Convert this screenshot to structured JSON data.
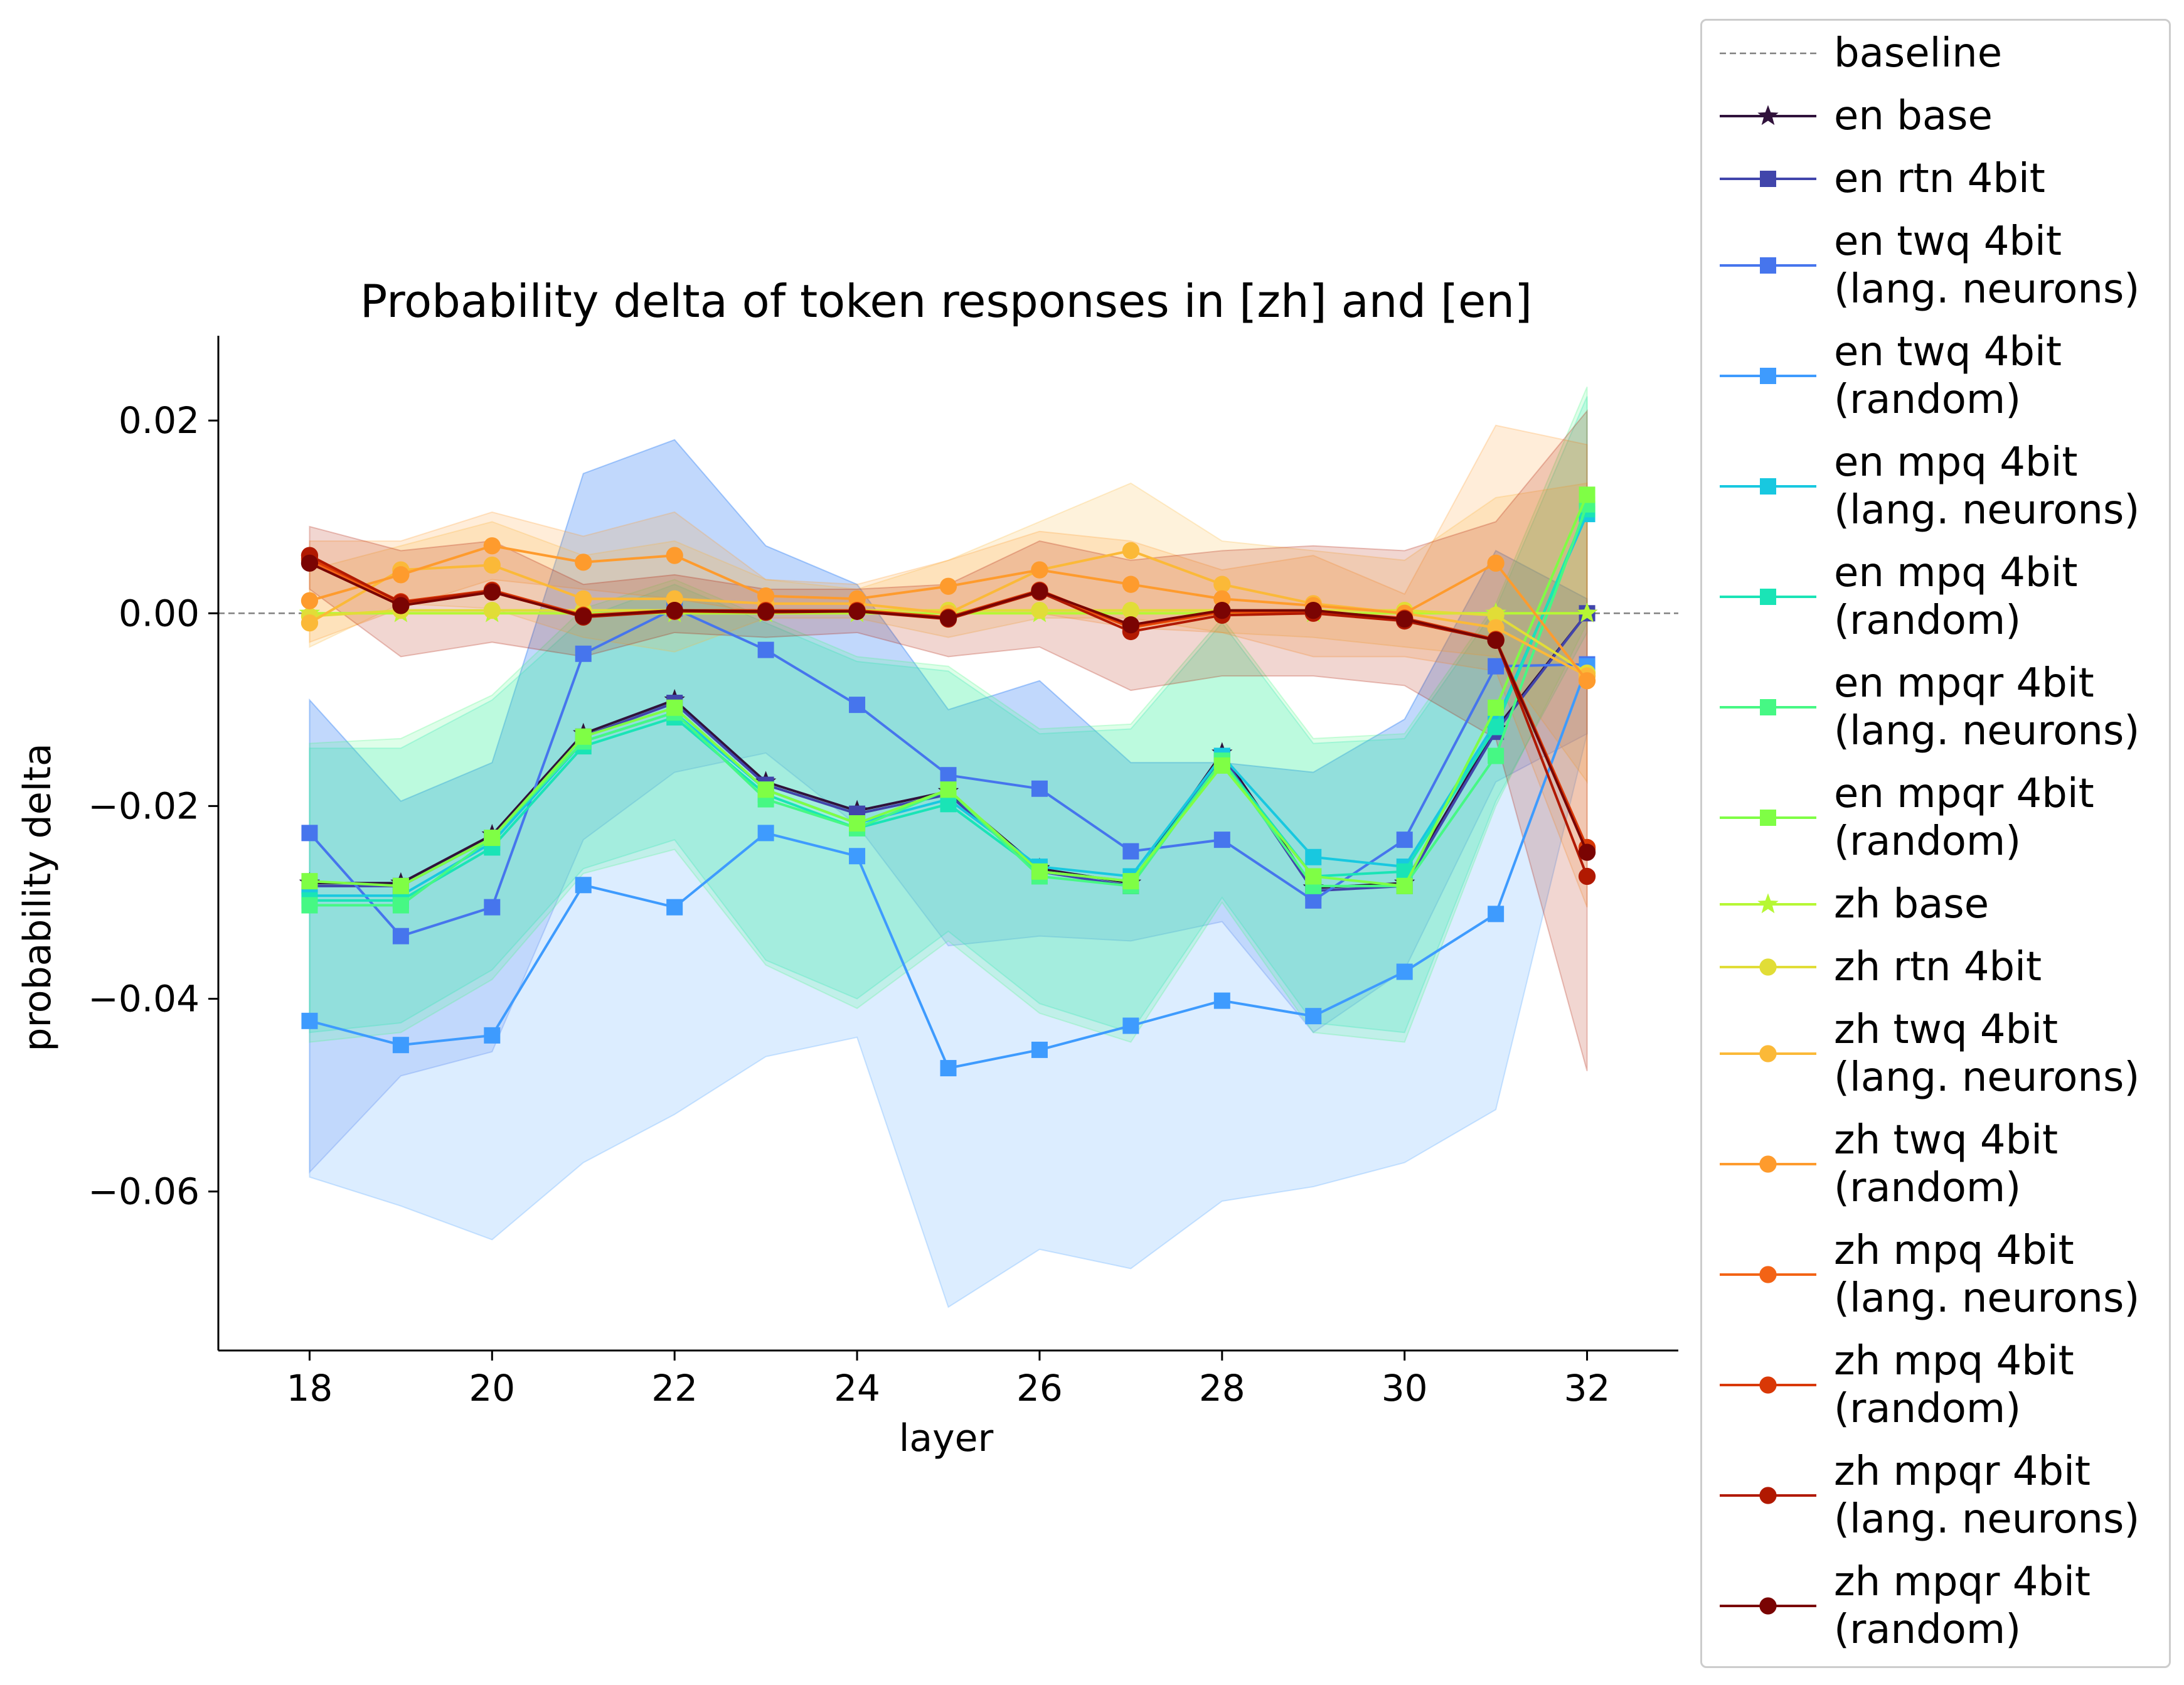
{
  "chart_data": {
    "type": "line",
    "title": "Probability delta of token responses in [zh] and [en]",
    "xlabel": "layer",
    "ylabel": "probability delta",
    "xlim": [
      17,
      33
    ],
    "ylim": [
      -0.0765,
      0.0288
    ],
    "xticks": [
      "18",
      "20",
      "22",
      "24",
      "26",
      "28",
      "30",
      "32"
    ],
    "yticks": [
      "0.02",
      "0.00",
      "−0.02",
      "−0.04",
      "−0.06"
    ],
    "ytick_values": [
      0.02,
      0.0,
      -0.02,
      -0.04,
      -0.06
    ],
    "xtick_values": [
      18,
      20,
      22,
      24,
      26,
      28,
      30,
      32
    ],
    "grid": false,
    "legend_position": "outside-right",
    "baseline": {
      "name": "baseline",
      "value": 0.0,
      "color": "#808080"
    },
    "x": [
      18,
      19,
      20,
      21,
      22,
      23,
      24,
      25,
      26,
      27,
      28,
      29,
      30,
      31,
      32
    ],
    "series": [
      {
        "name": "en base",
        "marker": "star",
        "color": "#30123b",
        "values": [
          -0.028,
          -0.028,
          -0.023,
          -0.0125,
          -0.009,
          -0.0175,
          -0.0205,
          -0.0185,
          -0.0265,
          -0.028,
          -0.0145,
          -0.0285,
          -0.028,
          -0.012,
          0.0
        ]
      },
      {
        "name": "en rtn 4bit",
        "marker": "square",
        "color": "#4145ab",
        "values": [
          -0.0283,
          -0.0283,
          -0.0233,
          -0.0128,
          -0.0093,
          -0.0178,
          -0.0208,
          -0.0188,
          -0.0268,
          -0.0283,
          -0.0148,
          -0.0288,
          -0.0283,
          -0.0123,
          0.0
        ]
      },
      {
        "name": "en twq 4bit\n(lang. neurons)",
        "marker": "square",
        "color": "#4675ed",
        "values": [
          -0.0228,
          -0.0335,
          -0.0305,
          -0.0042,
          0.0005,
          -0.0038,
          -0.0095,
          -0.0168,
          -0.0182,
          -0.0247,
          -0.0235,
          -0.0298,
          -0.0235,
          -0.0055,
          -0.0053
        ],
        "band": [
          [
            -0.009,
            -0.058
          ],
          [
            -0.0195,
            -0.048
          ],
          [
            -0.0155,
            -0.0455
          ],
          [
            0.0145,
            -0.0235
          ],
          [
            0.018,
            -0.0165
          ],
          [
            0.007,
            -0.0145
          ],
          [
            0.003,
            -0.022
          ],
          [
            -0.01,
            -0.0345
          ],
          [
            -0.007,
            -0.0335
          ],
          [
            -0.0155,
            -0.034
          ],
          [
            -0.0155,
            -0.032
          ],
          [
            -0.0165,
            -0.0435
          ],
          [
            -0.011,
            -0.037
          ],
          [
            0.0065,
            -0.0175
          ],
          [
            0.0015,
            -0.0125
          ]
        ]
      },
      {
        "name": "en twq 4bit\n(random)",
        "marker": "square",
        "color": "#3e9bfe",
        "values": [
          -0.0423,
          -0.0448,
          -0.0438,
          -0.0282,
          -0.0305,
          -0.0228,
          -0.0252,
          -0.0472,
          -0.0453,
          -0.0428,
          -0.0402,
          -0.0418,
          -0.0372,
          -0.0312,
          -0.0055
        ],
        "band": [
          [
            -0.009,
            -0.0585
          ],
          [
            -0.0195,
            -0.0615
          ],
          [
            -0.0155,
            -0.065
          ],
          [
            0.0145,
            -0.057
          ],
          [
            0.018,
            -0.052
          ],
          [
            0.007,
            -0.046
          ],
          [
            0.003,
            -0.044
          ],
          [
            -0.01,
            -0.072
          ],
          [
            -0.007,
            -0.066
          ],
          [
            -0.0155,
            -0.068
          ],
          [
            -0.0155,
            -0.061
          ],
          [
            -0.0165,
            -0.0595
          ],
          [
            -0.011,
            -0.057
          ],
          [
            0.0065,
            -0.0515
          ],
          [
            0.0015,
            -0.0125
          ]
        ]
      },
      {
        "name": "en mpq 4bit\n(lang. neurons)",
        "marker": "square",
        "color": "#18c8e0",
        "values": [
          -0.0293,
          -0.0293,
          -0.0238,
          -0.0133,
          -0.0103,
          -0.0183,
          -0.0218,
          -0.0193,
          -0.0263,
          -0.0273,
          -0.0148,
          -0.0253,
          -0.0263,
          -0.0113,
          0.0103
        ]
      },
      {
        "name": "en mpq 4bit\n(random)",
        "marker": "square",
        "color": "#1ae4b6",
        "values": [
          -0.0298,
          -0.0298,
          -0.0243,
          -0.0138,
          -0.0108,
          -0.0188,
          -0.0223,
          -0.0198,
          -0.0268,
          -0.0278,
          -0.0153,
          -0.0273,
          -0.0268,
          -0.0118,
          0.0108
        ],
        "band": [
          [
            -0.014,
            -0.0435
          ],
          [
            -0.014,
            -0.0425
          ],
          [
            -0.009,
            -0.037
          ],
          [
            -0.0005,
            -0.0265
          ],
          [
            0.003,
            -0.0235
          ],
          [
            -0.001,
            -0.036
          ],
          [
            -0.005,
            -0.04
          ],
          [
            -0.006,
            -0.033
          ],
          [
            -0.0125,
            -0.0405
          ],
          [
            -0.012,
            -0.0435
          ],
          [
            -0.001,
            -0.0295
          ],
          [
            -0.0135,
            -0.0425
          ],
          [
            -0.013,
            -0.0435
          ],
          [
            0.0005,
            -0.0195
          ],
          [
            0.0225,
            -0.002
          ]
        ]
      },
      {
        "name": "en mpqr 4bit\n(lang. neurons)",
        "marker": "square",
        "color": "#46f884",
        "values": [
          -0.0303,
          -0.0303,
          -0.0233,
          -0.0133,
          -0.0103,
          -0.0193,
          -0.0223,
          -0.0183,
          -0.0273,
          -0.0283,
          -0.0153,
          -0.0283,
          -0.0283,
          -0.0148,
          0.0113
        ],
        "band": [
          [
            -0.0135,
            -0.0445
          ],
          [
            -0.013,
            -0.0435
          ],
          [
            -0.0085,
            -0.038
          ],
          [
            0.0005,
            -0.027
          ],
          [
            0.0035,
            -0.0245
          ],
          [
            -0.0005,
            -0.0365
          ],
          [
            -0.0045,
            -0.041
          ],
          [
            -0.0055,
            -0.034
          ],
          [
            -0.012,
            -0.0415
          ],
          [
            -0.0115,
            -0.0445
          ],
          [
            -0.0005,
            -0.03
          ],
          [
            -0.013,
            -0.0435
          ],
          [
            -0.0125,
            -0.0445
          ],
          [
            0.001,
            -0.02
          ],
          [
            0.0235,
            -0.001
          ]
        ]
      },
      {
        "name": "en mpqr 4bit\n(random)",
        "marker": "square",
        "color": "#7ffe45",
        "values": [
          -0.0278,
          -0.0283,
          -0.0233,
          -0.0128,
          -0.0098,
          -0.0183,
          -0.0218,
          -0.0183,
          -0.0268,
          -0.0278,
          -0.0158,
          -0.0273,
          -0.0283,
          -0.0098,
          0.0123
        ]
      },
      {
        "name": "zh base",
        "marker": "star",
        "color": "#b6f734",
        "values": [
          0.0,
          0.0,
          0.0,
          0.0,
          0.0,
          0.0,
          0.0,
          0.0,
          0.0,
          0.0,
          0.0,
          0.0,
          0.0,
          0.0,
          0.0
        ]
      },
      {
        "name": "zh rtn 4bit",
        "marker": "circle",
        "color": "#e1dd37",
        "values": [
          -0.0003,
          0.0003,
          0.0003,
          0.0003,
          0.0003,
          0.0003,
          0.0003,
          0.0003,
          0.0003,
          0.0003,
          0.0003,
          0.0003,
          0.0003,
          -0.0002,
          -0.0062
        ]
      },
      {
        "name": "zh twq 4bit\n(lang. neurons)",
        "marker": "circle",
        "color": "#fbb938",
        "values": [
          -0.001,
          0.0045,
          0.005,
          0.0015,
          0.0015,
          0.001,
          0.001,
          0.0,
          0.0045,
          0.0065,
          0.003,
          0.001,
          0.0,
          -0.0015,
          -0.0065
        ],
        "band": [
          [
            0.0045,
            -0.0035
          ],
          [
            0.007,
            0.001
          ],
          [
            0.0095,
            0.0005
          ],
          [
            0.006,
            -0.0025
          ],
          [
            0.0075,
            -0.004
          ],
          [
            0.0035,
            -0.0005
          ],
          [
            0.0025,
            -0.0005
          ],
          [
            0.0055,
            -0.0025
          ],
          [
            0.0095,
            -0.0005
          ],
          [
            0.0135,
            -0.0005
          ],
          [
            0.0075,
            -0.002
          ],
          [
            0.0065,
            -0.0025
          ],
          [
            0.0055,
            -0.0035
          ],
          [
            0.012,
            -0.0045
          ],
          [
            0.0135,
            -0.0175
          ]
        ]
      },
      {
        "name": "zh twq 4bit\n(random)",
        "marker": "circle",
        "color": "#fe9b2d",
        "values": [
          0.0013,
          0.004,
          0.007,
          0.0053,
          0.006,
          0.0018,
          0.0015,
          0.0028,
          0.0045,
          0.003,
          0.0015,
          0.0008,
          0.0,
          0.0052,
          -0.007
        ],
        "band": [
          [
            0.0075,
            -0.003
          ],
          [
            0.0075,
            0.0005
          ],
          [
            0.0105,
            0.0035
          ],
          [
            0.008,
            0.0025
          ],
          [
            0.0105,
            0.0015
          ],
          [
            0.0035,
            0.0
          ],
          [
            0.003,
            0.0
          ],
          [
            0.0055,
            0.0
          ],
          [
            0.0085,
            0.0
          ],
          [
            0.0075,
            -0.0015
          ],
          [
            0.0045,
            -0.002
          ],
          [
            0.006,
            -0.0045
          ],
          [
            0.002,
            -0.0045
          ],
          [
            0.0195,
            -0.006
          ],
          [
            0.0175,
            -0.0305
          ]
        ]
      },
      {
        "name": "zh mpq 4bit\n(lang. neurons)",
        "marker": "circle",
        "color": "#f36315",
        "values": [
          0.0055,
          0.001,
          0.0022,
          -0.0003,
          0.0002,
          0.0002,
          0.0002,
          -0.0005,
          0.0023,
          -0.0015,
          0.0001,
          0.0001,
          -0.0006,
          -0.0028,
          -0.0245
        ]
      },
      {
        "name": "zh mpq 4bit\n(random)",
        "marker": "circle",
        "color": "#d93806",
        "values": [
          0.0057,
          0.0012,
          0.0024,
          -0.0002,
          0.0003,
          0.0003,
          0.0003,
          -0.0004,
          0.0024,
          -0.0014,
          0.0002,
          0.0002,
          -0.0005,
          -0.0027,
          -0.0243
        ]
      },
      {
        "name": "zh mpqr 4bit\n(lang. neurons)",
        "marker": "circle",
        "color": "#b11901",
        "values": [
          0.006,
          0.0011,
          0.0023,
          -0.0004,
          0.0002,
          0.0001,
          0.0002,
          -0.0006,
          0.0022,
          -0.0019,
          -0.0002,
          0.0,
          -0.0008,
          -0.0028,
          -0.0273
        ],
        "band": [
          [
            0.009,
            0.0025
          ],
          [
            0.0065,
            -0.0045
          ],
          [
            0.0075,
            -0.003
          ],
          [
            0.003,
            -0.0045
          ],
          [
            0.004,
            -0.002
          ],
          [
            0.0025,
            -0.0025
          ],
          [
            0.0025,
            -0.002
          ],
          [
            0.003,
            -0.0045
          ],
          [
            0.0075,
            -0.0035
          ],
          [
            0.0055,
            -0.008
          ],
          [
            0.0065,
            -0.0065
          ],
          [
            0.007,
            -0.0065
          ],
          [
            0.0065,
            -0.0075
          ],
          [
            0.0095,
            -0.013
          ],
          [
            0.021,
            -0.0475
          ]
        ]
      },
      {
        "name": "zh mpqr 4bit\n(random)",
        "marker": "circle",
        "color": "#7a0403",
        "values": [
          0.0052,
          0.0008,
          0.0022,
          -0.0003,
          0.0003,
          0.0002,
          0.0002,
          -0.0005,
          0.0023,
          -0.0012,
          0.0003,
          0.0003,
          -0.0006,
          -0.0028,
          -0.0248
        ]
      }
    ]
  }
}
